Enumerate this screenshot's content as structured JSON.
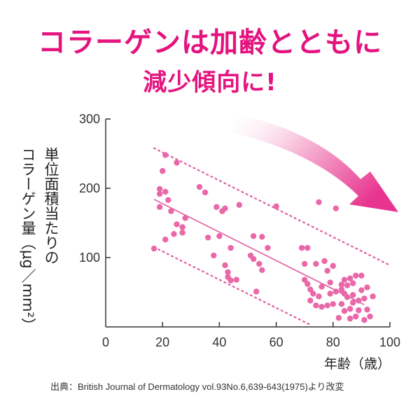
{
  "title": {
    "line1": "コラーゲンは加齢とともに",
    "line2": "減少傾向に!"
  },
  "source": "出典：British Journal of Dermatology vol.93No.6,639-643(1975)より改変",
  "colors": {
    "accent": "#e4147f",
    "points": "#ea67a8",
    "lines": "#e25aa0",
    "arrow": "#e8348f"
  },
  "chart_data": {
    "type": "scatter",
    "xlabel": "年齢（歳）",
    "ylabel_col1": "単位面積当たりの",
    "ylabel_col2": "コラーゲン量（μg／mm²）",
    "xlim": [
      0,
      100
    ],
    "ylim": [
      0,
      300
    ],
    "xticks": [
      "0",
      "20",
      "40",
      "60",
      "80",
      "100"
    ],
    "yticks": [
      "100",
      "200",
      "300"
    ],
    "trend_line": {
      "x": [
        17,
        91
      ],
      "y": [
        184,
        32
      ]
    },
    "upper_bound": {
      "x": [
        17,
        100
      ],
      "y": [
        258,
        89
      ]
    },
    "lower_bound": {
      "x": [
        17,
        72
      ],
      "y": [
        115,
        3
      ]
    },
    "points": [
      {
        "x": 17,
        "y": 113
      },
      {
        "x": 19,
        "y": 199
      },
      {
        "x": 19,
        "y": 192
      },
      {
        "x": 19,
        "y": 173
      },
      {
        "x": 20,
        "y": 225
      },
      {
        "x": 21,
        "y": 248
      },
      {
        "x": 21,
        "y": 195
      },
      {
        "x": 21,
        "y": 126
      },
      {
        "x": 22,
        "y": 183
      },
      {
        "x": 23,
        "y": 167
      },
      {
        "x": 24,
        "y": 134
      },
      {
        "x": 25,
        "y": 237
      },
      {
        "x": 25,
        "y": 148
      },
      {
        "x": 27,
        "y": 144
      },
      {
        "x": 27,
        "y": 136
      },
      {
        "x": 28,
        "y": 157
      },
      {
        "x": 33,
        "y": 202
      },
      {
        "x": 35,
        "y": 194
      },
      {
        "x": 36,
        "y": 129
      },
      {
        "x": 38,
        "y": 103
      },
      {
        "x": 39,
        "y": 173
      },
      {
        "x": 40,
        "y": 131
      },
      {
        "x": 41,
        "y": 167
      },
      {
        "x": 42,
        "y": 171
      },
      {
        "x": 42,
        "y": 89
      },
      {
        "x": 43,
        "y": 79
      },
      {
        "x": 43,
        "y": 72
      },
      {
        "x": 44,
        "y": 67
      },
      {
        "x": 44,
        "y": 114
      },
      {
        "x": 46,
        "y": 68
      },
      {
        "x": 47,
        "y": 176
      },
      {
        "x": 51,
        "y": 103
      },
      {
        "x": 52,
        "y": 131
      },
      {
        "x": 52,
        "y": 98
      },
      {
        "x": 53,
        "y": 51
      },
      {
        "x": 54,
        "y": 91
      },
      {
        "x": 55,
        "y": 130
      },
      {
        "x": 55,
        "y": 82
      },
      {
        "x": 57,
        "y": 114
      },
      {
        "x": 60,
        "y": 174
      },
      {
        "x": 69,
        "y": 114
      },
      {
        "x": 70,
        "y": 68
      },
      {
        "x": 70,
        "y": 91
      },
      {
        "x": 71,
        "y": 114
      },
      {
        "x": 71,
        "y": 62
      },
      {
        "x": 72,
        "y": 54
      },
      {
        "x": 72,
        "y": 38
      },
      {
        "x": 73,
        "y": 48
      },
      {
        "x": 74,
        "y": 91
      },
      {
        "x": 74,
        "y": 31
      },
      {
        "x": 75,
        "y": 180
      },
      {
        "x": 75,
        "y": 44
      },
      {
        "x": 76,
        "y": 58
      },
      {
        "x": 76,
        "y": 29
      },
      {
        "x": 77,
        "y": 95
      },
      {
        "x": 78,
        "y": 81
      },
      {
        "x": 78,
        "y": 31
      },
      {
        "x": 79,
        "y": 64
      },
      {
        "x": 79,
        "y": 48
      },
      {
        "x": 80,
        "y": 88
      },
      {
        "x": 80,
        "y": 33
      },
      {
        "x": 81,
        "y": 171
      },
      {
        "x": 81,
        "y": 51
      },
      {
        "x": 82,
        "y": 13
      },
      {
        "x": 83,
        "y": 54
      },
      {
        "x": 83,
        "y": 33
      },
      {
        "x": 84,
        "y": 23
      },
      {
        "x": 84,
        "y": 48
      },
      {
        "x": 85,
        "y": 43
      },
      {
        "x": 85,
        "y": 60
      },
      {
        "x": 86,
        "y": 70
      },
      {
        "x": 86,
        "y": 12
      },
      {
        "x": 86,
        "y": 26
      },
      {
        "x": 87,
        "y": 35
      },
      {
        "x": 87,
        "y": 63
      },
      {
        "x": 87,
        "y": 46
      },
      {
        "x": 88,
        "y": 74
      },
      {
        "x": 88,
        "y": 15
      },
      {
        "x": 89,
        "y": 38
      },
      {
        "x": 89,
        "y": 24
      },
      {
        "x": 90,
        "y": 74
      },
      {
        "x": 90,
        "y": 53
      },
      {
        "x": 91,
        "y": 41
      },
      {
        "x": 91,
        "y": 10
      },
      {
        "x": 92,
        "y": 25
      },
      {
        "x": 92,
        "y": 57
      },
      {
        "x": 93,
        "y": 15
      },
      {
        "x": 94,
        "y": 44
      },
      {
        "x": 84,
        "y": 68
      },
      {
        "x": 83,
        "y": 61
      }
    ]
  }
}
